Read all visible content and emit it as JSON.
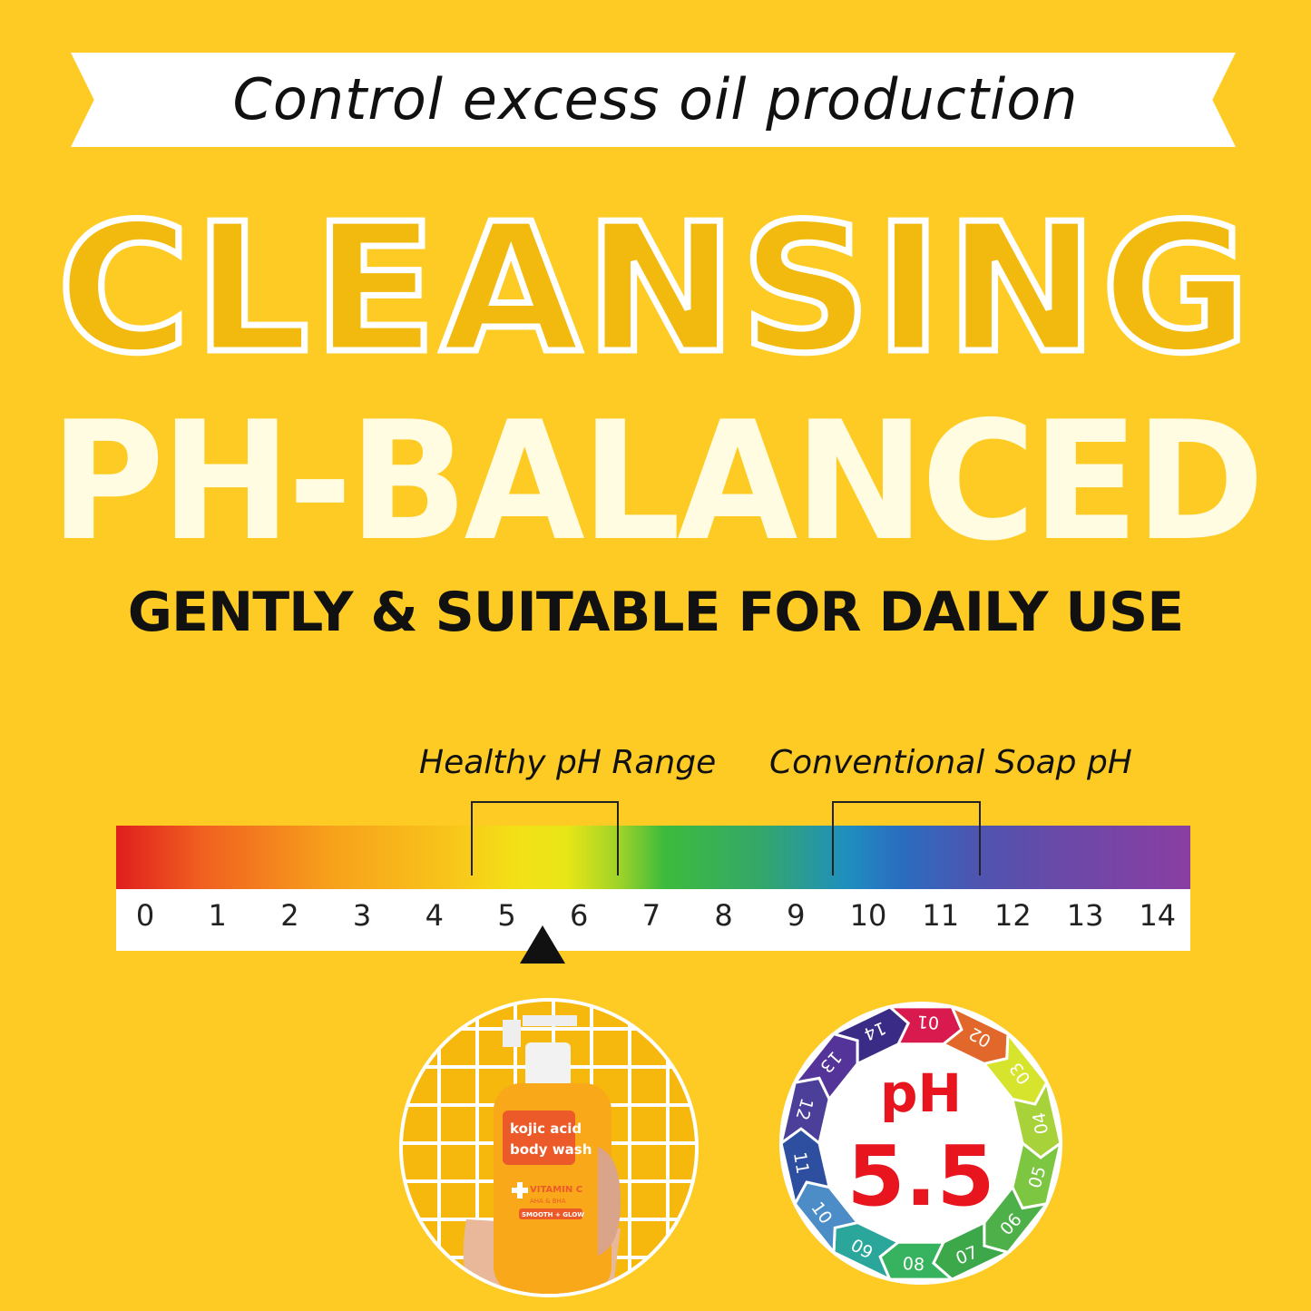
{
  "banner": {
    "tagline": "Control excess oil production"
  },
  "headline": {
    "outline": "CLEANSING",
    "main": "PH-BALANCED",
    "sub": "GENTLY & SUITABLE FOR DAILY USE"
  },
  "scale": {
    "healthy_label": "Healthy pH Range",
    "soap_label": "Conventional Soap pH",
    "numbers": [
      "0",
      "1",
      "2",
      "3",
      "4",
      "5",
      "6",
      "7",
      "8",
      "9",
      "10",
      "11",
      "12",
      "13",
      "14"
    ],
    "healthy_range": [
      4.5,
      6.5
    ],
    "soap_range": [
      9.5,
      11.5
    ],
    "pointer_value": 5.5
  },
  "product": {
    "name": "kojic acid body wash",
    "line1": "kojic acid",
    "line2": "body wash",
    "claim": "VITAMIN C",
    "sub": "AHA & BHA",
    "badge": "SMOOTH + GLOW"
  },
  "ph_badge": {
    "label": "pH",
    "value": "5.5",
    "segments": [
      "01",
      "02",
      "03",
      "04",
      "05",
      "06",
      "07",
      "08",
      "09",
      "10",
      "11",
      "12",
      "13",
      "14"
    ],
    "colors": [
      "#D91A4F",
      "#E2672A",
      "#D6E42E",
      "#A8D23A",
      "#7CC641",
      "#4DB048",
      "#3CA84A",
      "#37B25E",
      "#2AA79A",
      "#4C8DC8",
      "#2E4FA0",
      "#4B3F9A",
      "#55349A",
      "#3A2C86"
    ],
    "text_color": "#E8141E"
  }
}
